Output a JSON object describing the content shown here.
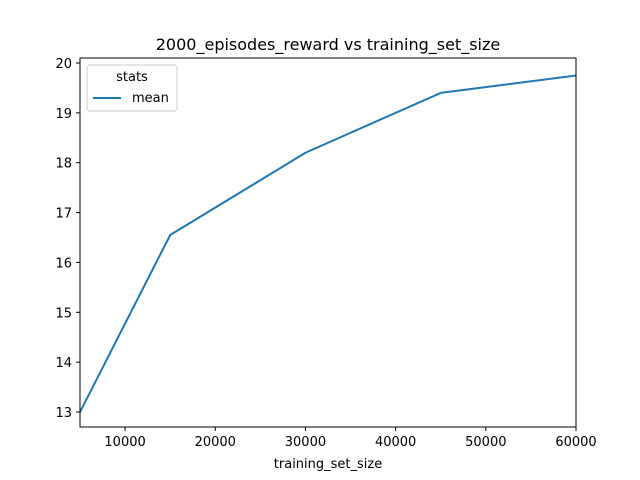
{
  "chart_data": {
    "type": "line",
    "title": "2000_episodes_reward vs training_set_size",
    "xlabel": "training_set_size",
    "ylabel": "",
    "xlim": [
      5000,
      60000
    ],
    "ylim": [
      12.7,
      20.1
    ],
    "xticks": [
      10000,
      20000,
      30000,
      40000,
      50000,
      60000
    ],
    "yticks": [
      13,
      14,
      15,
      16,
      17,
      18,
      19,
      20
    ],
    "grid": false,
    "legend": {
      "title": "stats",
      "placement": "top-left"
    },
    "series": [
      {
        "name": "mean",
        "color": "#1f77b4",
        "x": [
          5000,
          15000,
          30000,
          45000,
          60000
        ],
        "y": [
          13.0,
          16.55,
          18.2,
          19.4,
          19.75
        ]
      }
    ]
  }
}
